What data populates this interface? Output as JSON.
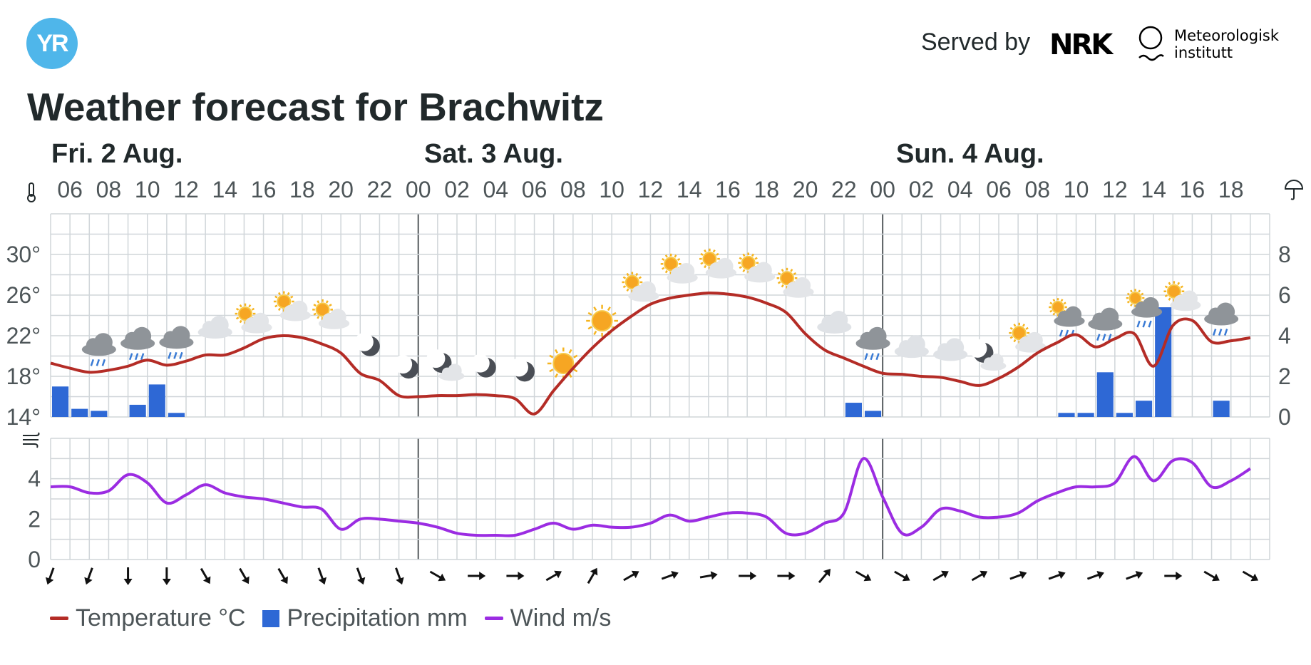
{
  "header": {
    "logo_text": "YR",
    "served_by": "Served by",
    "nrk_text": "NRK",
    "met_line1": "Meteorologisk",
    "met_line2": "institutt"
  },
  "title": "Weather forecast for Brachwitz",
  "days": [
    {
      "label": "Fri. 2 Aug."
    },
    {
      "label": "Sat. 3 Aug."
    },
    {
      "label": "Sun. 4 Aug."
    }
  ],
  "legend": {
    "temperature": "Temperature °C",
    "precipitation": "Precipitation mm",
    "wind": "Wind m/s"
  },
  "colors": {
    "temperature": "#b42c26",
    "precipitation": "#2e68d5",
    "wind": "#9b2ce2",
    "grid": "#d0d5d9",
    "day_divider": "#555a5e",
    "text": "#4d5558"
  },
  "icons": {
    "thermometer": "thermometer-icon",
    "umbrella": "umbrella-icon",
    "wind": "wind-icon"
  },
  "chart_data": {
    "type": "line",
    "x_start": "Fri. 2 Aug. 05:00",
    "x_hours": 63,
    "x_tick_labels": [
      "06",
      "08",
      "10",
      "12",
      "14",
      "16",
      "18",
      "20",
      "22",
      "00",
      "02",
      "04",
      "06",
      "08",
      "10",
      "12",
      "14",
      "16",
      "18",
      "20",
      "22",
      "00",
      "02",
      "04",
      "06",
      "08",
      "10",
      "12",
      "14",
      "16",
      "18"
    ],
    "temperature": {
      "name": "Temperature °C",
      "axis_labels": [
        "14°",
        "18°",
        "22°",
        "26°",
        "30°"
      ],
      "ylim": [
        14,
        34
      ],
      "x": [
        0,
        1,
        2,
        3,
        4,
        5,
        6,
        7,
        8,
        9,
        10,
        11,
        12,
        13,
        14,
        15,
        16,
        17,
        18,
        19,
        20,
        21,
        22,
        23,
        24,
        25,
        26,
        27,
        28,
        29,
        30,
        31,
        32,
        33,
        34,
        35,
        36,
        37,
        38,
        39,
        40,
        41,
        42,
        43,
        44,
        45,
        46,
        47,
        48,
        49,
        50,
        51,
        52,
        53,
        54,
        55,
        56,
        57,
        58,
        59,
        60,
        61,
        62
      ],
      "values": [
        19.3,
        18.8,
        18.4,
        18.6,
        19.0,
        19.6,
        19.1,
        19.5,
        20.1,
        20.1,
        20.8,
        21.7,
        22.0,
        21.8,
        21.2,
        20.3,
        18.3,
        17.6,
        16.1,
        16.0,
        16.1,
        16.1,
        16.2,
        16.1,
        15.8,
        14.3,
        16.6,
        18.8,
        20.8,
        22.5,
        23.9,
        25.1,
        25.7,
        26.0,
        26.2,
        26.1,
        25.8,
        25.2,
        24.3,
        22.2,
        20.6,
        19.8,
        19.0,
        18.3,
        18.2,
        18.0,
        17.9,
        17.5,
        17.1,
        17.8,
        18.9,
        20.3,
        21.3,
        22.1,
        20.9,
        21.7,
        22.2,
        19.0,
        23.0,
        23.5,
        21.4,
        21.5,
        21.8
      ]
    },
    "precipitation": {
      "name": "Precipitation mm",
      "axis_labels": [
        "0",
        "2",
        "4",
        "6",
        "8"
      ],
      "ylim": [
        0,
        10
      ],
      "x": [
        0,
        1,
        2,
        3,
        4,
        5,
        6,
        7,
        8,
        9,
        10,
        11,
        12,
        13,
        14,
        15,
        16,
        17,
        18,
        19,
        20,
        21,
        22,
        23,
        24,
        25,
        26,
        27,
        28,
        29,
        30,
        31,
        32,
        33,
        34,
        35,
        36,
        37,
        38,
        39,
        40,
        41,
        42,
        43,
        44,
        45,
        46,
        47,
        48,
        49,
        50,
        51,
        52,
        53,
        54,
        55,
        56,
        57,
        58,
        59,
        60,
        61,
        62
      ],
      "values": [
        1.5,
        0.4,
        0.3,
        0,
        0.6,
        1.6,
        0.2,
        0,
        0,
        0,
        0,
        0,
        0,
        0,
        0,
        0,
        0,
        0,
        0,
        0,
        0,
        0,
        0,
        0,
        0,
        0,
        0,
        0,
        0,
        0,
        0,
        0,
        0,
        0,
        0,
        0,
        0,
        0,
        0,
        0,
        0,
        0,
        0,
        0,
        0,
        0,
        0,
        0,
        0,
        0,
        0,
        0,
        0,
        0,
        0,
        0,
        0,
        0,
        0,
        0,
        0,
        0,
        0
      ]
    },
    "precipitation_late": {
      "x": [
        41,
        42,
        52,
        53,
        54,
        55,
        56,
        57,
        58,
        59,
        60,
        61
      ],
      "values": [
        0.7,
        0.3,
        0.2,
        0.2,
        2.2,
        0.2,
        0.8,
        5.4,
        0,
        0,
        0.8,
        0
      ]
    },
    "wind": {
      "name": "Wind m/s",
      "axis_labels": [
        "0",
        "2",
        "4"
      ],
      "ylim": [
        0,
        6
      ],
      "x": [
        0,
        1,
        2,
        3,
        4,
        5,
        6,
        7,
        8,
        9,
        10,
        11,
        12,
        13,
        14,
        15,
        16,
        17,
        18,
        19,
        20,
        21,
        22,
        23,
        24,
        25,
        26,
        27,
        28,
        29,
        30,
        31,
        32,
        33,
        34,
        35,
        36,
        37,
        38,
        39,
        40,
        41,
        42,
        43,
        44,
        45,
        46,
        47,
        48,
        49,
        50,
        51,
        52,
        53,
        54,
        55,
        56,
        57,
        58,
        59,
        60,
        61,
        62
      ],
      "values": [
        3.6,
        3.6,
        3.3,
        3.4,
        4.2,
        3.8,
        2.8,
        3.2,
        3.7,
        3.3,
        3.1,
        3.0,
        2.8,
        2.6,
        2.5,
        1.5,
        2.0,
        2.0,
        1.9,
        1.8,
        1.6,
        1.3,
        1.2,
        1.2,
        1.2,
        1.5,
        1.8,
        1.5,
        1.7,
        1.6,
        1.6,
        1.8,
        2.2,
        1.9,
        2.1,
        2.3,
        2.3,
        2.1,
        1.3,
        1.3,
        1.8,
        2.3,
        5.0,
        3.1,
        1.3,
        1.6,
        2.5,
        2.4,
        2.1,
        2.1,
        2.3,
        2.9,
        3.3,
        3.6,
        3.6,
        3.8,
        5.1,
        3.9,
        4.9,
        4.8,
        3.6,
        3.9,
        4.5
      ]
    },
    "wind_direction_deg": [
      200,
      200,
      180,
      180,
      150,
      150,
      150,
      160,
      160,
      160,
      120,
      90,
      90,
      60,
      30,
      60,
      70,
      80,
      90,
      90,
      40,
      120,
      120,
      60,
      60,
      70,
      70,
      70,
      70,
      90,
      120,
      120
    ],
    "weather_icons": [
      {
        "x": 2,
        "t": "rain-cloud"
      },
      {
        "x": 4,
        "t": "rain-cloud"
      },
      {
        "x": 6,
        "t": "rain-cloud"
      },
      {
        "x": 8,
        "t": "cloud"
      },
      {
        "x": 10,
        "t": "partly-sunny"
      },
      {
        "x": 12,
        "t": "partly-sunny"
      },
      {
        "x": 14,
        "t": "partly-sunny"
      },
      {
        "x": 16,
        "t": "moon"
      },
      {
        "x": 18,
        "t": "moon"
      },
      {
        "x": 20,
        "t": "moon-cloud"
      },
      {
        "x": 22,
        "t": "moon"
      },
      {
        "x": 24,
        "t": "moon"
      },
      {
        "x": 26,
        "t": "sun"
      },
      {
        "x": 28,
        "t": "sun"
      },
      {
        "x": 30,
        "t": "partly-sunny"
      },
      {
        "x": 32,
        "t": "partly-sunny"
      },
      {
        "x": 34,
        "t": "partly-sunny"
      },
      {
        "x": 36,
        "t": "partly-sunny"
      },
      {
        "x": 38,
        "t": "partly-sunny"
      },
      {
        "x": 40,
        "t": "cloud"
      },
      {
        "x": 42,
        "t": "rain-cloud"
      },
      {
        "x": 44,
        "t": "cloud"
      },
      {
        "x": 46,
        "t": "cloud"
      },
      {
        "x": 48,
        "t": "moon-cloud"
      },
      {
        "x": 50,
        "t": "partly-sunny"
      },
      {
        "x": 52,
        "t": "partly-rain"
      },
      {
        "x": 54,
        "t": "rain-cloud"
      },
      {
        "x": 56,
        "t": "partly-rain"
      },
      {
        "x": 58,
        "t": "partly-sunny"
      },
      {
        "x": 60,
        "t": "rain-cloud"
      }
    ]
  }
}
